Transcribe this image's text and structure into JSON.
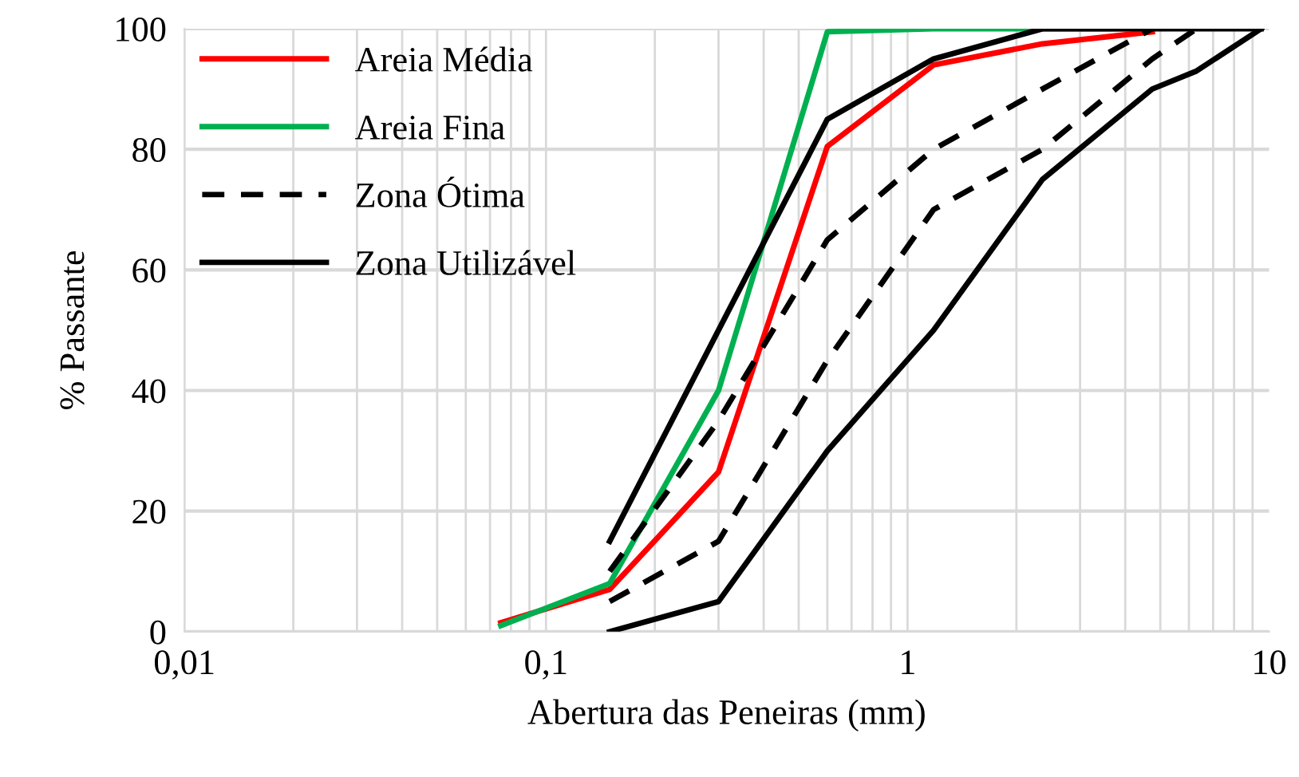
{
  "chart_data": {
    "type": "line",
    "xlabel": "Abertura das Peneiras (mm)",
    "ylabel": "% Passante",
    "log": "x",
    "grid": true,
    "legend": "top left",
    "marker": "none",
    "xlim": [
      0.01,
      10
    ],
    "xticks": [
      {
        "value": 0.01,
        "label": "0,01"
      },
      {
        "value": 0.1,
        "label": "0,1"
      },
      {
        "value": 1,
        "label": "1"
      },
      {
        "value": 10,
        "label": "10"
      }
    ],
    "ylim": [
      0,
      100
    ],
    "yticks": [
      0,
      20,
      40,
      60,
      80,
      100
    ],
    "series": [
      {
        "name": "Areia Média",
        "color": "#ff0000",
        "line_style": "solid",
        "x": [
          0.075,
          0.15,
          0.3,
          0.6,
          1.18,
          2.36,
          4.75
        ],
        "values": [
          1.5,
          7,
          26.5,
          80.5,
          94,
          97.5,
          99.5
        ]
      },
      {
        "name": "Areia Fina",
        "color": "#00b050",
        "line_style": "solid",
        "x": [
          0.075,
          0.15,
          0.3,
          0.6,
          1.18,
          2.36,
          4.75
        ],
        "values": [
          1,
          8,
          40,
          99.5,
          100,
          100,
          100
        ]
      },
      {
        "name": "Zona Ótima",
        "color": "#000000",
        "line_style": "dashed",
        "x": [
          0.15,
          0.3,
          0.6,
          1.18,
          2.36,
          4.75
        ],
        "values": [
          10,
          35,
          65,
          80,
          90,
          100
        ]
      },
      {
        "color": "#000000",
        "line_style": "dashed",
        "x": [
          0.15,
          0.3,
          0.6,
          1.18,
          2.36,
          4.75,
          6.3
        ],
        "values": [
          5,
          15,
          45,
          70,
          80,
          95,
          100
        ]
      },
      {
        "name": "Zona Utilizável",
        "color": "#000000",
        "line_style": "solid",
        "x": [
          0.15,
          0.3,
          0.6,
          1.18,
          2.36,
          4.75,
          9.5
        ],
        "values": [
          15,
          50,
          85,
          95,
          100,
          100,
          100
        ]
      },
      {
        "color": "#000000",
        "line_style": "solid",
        "x": [
          0.15,
          0.3,
          0.6,
          1.18,
          2.36,
          4.75,
          6.3,
          9.5
        ],
        "values": [
          0,
          5,
          30,
          50,
          75,
          90,
          93,
          100
        ]
      }
    ]
  }
}
